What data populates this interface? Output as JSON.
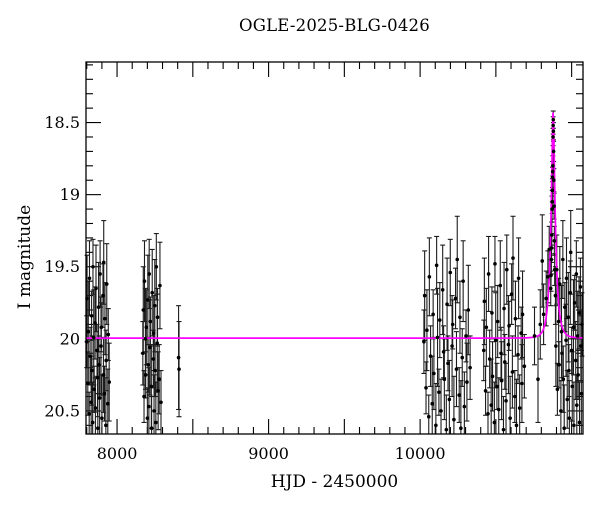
{
  "title": "OGLE-2025-BLG-0426",
  "figure": {
    "background": "#ffffff",
    "frame_color": "#000000"
  },
  "chart_data": {
    "type": "scatter",
    "title": "OGLE-2025-BLG-0426",
    "xlabel": "HJD - 2450000",
    "ylabel": "I magnitude",
    "xlim": [
      7795,
      11075
    ],
    "ylim": [
      20.66,
      18.08
    ],
    "y_inverted": true,
    "grid": false,
    "legend": null,
    "x_ticks": [
      {
        "v": 8000,
        "label": "8000"
      },
      {
        "v": 9000,
        "label": "9000"
      },
      {
        "v": 10000,
        "label": "10000"
      }
    ],
    "y_ticks": [
      {
        "v": 18.5,
        "label": "18.5"
      },
      {
        "v": 19.0,
        "label": "19"
      },
      {
        "v": 19.5,
        "label": "19.5"
      },
      {
        "v": 20.0,
        "label": "20"
      },
      {
        "v": 20.5,
        "label": "20.5"
      }
    ],
    "x_minor_step": 100,
    "x_medium_step": 500,
    "y_minor_step": 0.1,
    "y_medium_step": 0.5,
    "point_color": "#000000",
    "errorbar_color": "#1c1c1c",
    "model": {
      "type": "paczynski",
      "t0": 10878,
      "tE": 32,
      "u0": 0.24,
      "I0": 19.995,
      "peak_mag": 18.43,
      "color": "#ff00ff"
    },
    "points": [
      [
        7800,
        20.02,
        0.18
      ],
      [
        7802,
        19.72,
        0.3
      ],
      [
        7807,
        20.31,
        0.22
      ],
      [
        7810,
        19.95,
        0.35
      ],
      [
        7816,
        20.52,
        0.15
      ],
      [
        7818,
        19.58,
        0.26
      ],
      [
        7822,
        20.12,
        0.2
      ],
      [
        7829,
        20.44,
        0.32
      ],
      [
        7832,
        19.84,
        0.17
      ],
      [
        7834,
        20.22,
        0.24
      ],
      [
        7839,
        20.58,
        0.28
      ],
      [
        7841,
        19.5,
        0.19
      ],
      [
        7846,
        19.99,
        0.33
      ],
      [
        7849,
        20.35,
        0.16
      ],
      [
        7855,
        19.89,
        0.25
      ],
      [
        7857,
        20.48,
        0.21
      ],
      [
        7861,
        19.65,
        0.3
      ],
      [
        7868,
        20.08,
        0.18
      ],
      [
        7871,
        20.27,
        0.27
      ],
      [
        7873,
        20.62,
        0.24
      ],
      [
        7878,
        19.78,
        0.31
      ],
      [
        7880,
        20.18,
        0.2
      ],
      [
        7885,
        20.41,
        0.28
      ],
      [
        7888,
        19.55,
        0.23
      ],
      [
        7894,
        20.05,
        0.34
      ],
      [
        7896,
        19.92,
        0.17
      ],
      [
        7900,
        20.55,
        0.3
      ],
      [
        7907,
        19.7,
        0.22
      ],
      [
        7910,
        20.25,
        0.26
      ],
      [
        7912,
        19.47,
        0.29
      ],
      [
        7917,
        20.38,
        0.19
      ],
      [
        7920,
        19.86,
        0.25
      ],
      [
        7926,
        20.6,
        0.33
      ],
      [
        7928,
        20.15,
        0.21
      ],
      [
        7932,
        19.62,
        0.28
      ],
      [
        7939,
        20.45,
        0.24
      ],
      [
        7942,
        19.97,
        0.18
      ],
      [
        7948,
        20.3,
        0.27
      ],
      [
        8170,
        20.1,
        0.22
      ],
      [
        8173,
        19.8,
        0.3
      ],
      [
        8178,
        20.4,
        0.18
      ],
      [
        8181,
        19.6,
        0.28
      ],
      [
        8187,
        20.0,
        0.35
      ],
      [
        8189,
        20.25,
        0.16
      ],
      [
        8193,
        19.92,
        0.26
      ],
      [
        8200,
        20.55,
        0.21
      ],
      [
        8203,
        19.73,
        0.31
      ],
      [
        8205,
        20.18,
        0.19
      ],
      [
        8210,
        20.47,
        0.27
      ],
      [
        8212,
        19.55,
        0.24
      ],
      [
        8217,
        20.06,
        0.33
      ],
      [
        8220,
        19.88,
        0.17
      ],
      [
        8226,
        20.33,
        0.29
      ],
      [
        8228,
        20.62,
        0.22
      ],
      [
        8232,
        19.68,
        0.3
      ],
      [
        8239,
        20.14,
        0.2
      ],
      [
        8242,
        19.96,
        0.26
      ],
      [
        8244,
        20.5,
        0.25
      ],
      [
        8249,
        19.77,
        0.32
      ],
      [
        8251,
        20.22,
        0.18
      ],
      [
        8256,
        20.58,
        0.28
      ],
      [
        8259,
        19.5,
        0.23
      ],
      [
        8265,
        20.03,
        0.34
      ],
      [
        8267,
        19.85,
        0.2
      ],
      [
        8271,
        20.36,
        0.27
      ],
      [
        8278,
        20.28,
        0.24
      ],
      [
        8283,
        19.63,
        0.3
      ],
      [
        8290,
        20.44,
        0.22
      ],
      [
        8406,
        20.13,
        0.36
      ],
      [
        8409,
        20.21,
        0.33
      ],
      [
        10025,
        20.02,
        0.22
      ],
      [
        10030,
        19.7,
        0.31
      ],
      [
        10039,
        20.34,
        0.18
      ],
      [
        10045,
        19.94,
        0.28
      ],
      [
        10057,
        20.54,
        0.15
      ],
      [
        10061,
        19.57,
        0.27
      ],
      [
        10069,
        20.12,
        0.21
      ],
      [
        10080,
        20.45,
        0.33
      ],
      [
        10086,
        19.83,
        0.17
      ],
      [
        10091,
        20.24,
        0.25
      ],
      [
        10104,
        20.6,
        0.29
      ],
      [
        10109,
        19.49,
        0.2
      ],
      [
        10115,
        19.99,
        0.34
      ],
      [
        10124,
        20.37,
        0.16
      ],
      [
        10130,
        19.87,
        0.26
      ],
      [
        10138,
        20.5,
        0.22
      ],
      [
        10149,
        19.66,
        0.31
      ],
      [
        10155,
        20.09,
        0.18
      ],
      [
        10160,
        20.28,
        0.28
      ],
      [
        10173,
        20.63,
        0.24
      ],
      [
        10178,
        19.76,
        0.32
      ],
      [
        10184,
        20.17,
        0.19
      ],
      [
        10193,
        20.42,
        0.27
      ],
      [
        10199,
        19.54,
        0.23
      ],
      [
        10211,
        20.05,
        0.35
      ],
      [
        10215,
        19.9,
        0.17
      ],
      [
        10223,
        20.56,
        0.3
      ],
      [
        10234,
        19.72,
        0.21
      ],
      [
        10240,
        20.21,
        0.26
      ],
      [
        10245,
        19.45,
        0.3
      ],
      [
        10258,
        20.39,
        0.19
      ],
      [
        10263,
        19.85,
        0.25
      ],
      [
        10269,
        20.62,
        0.33
      ],
      [
        10278,
        20.13,
        0.2
      ],
      [
        10284,
        19.6,
        0.28
      ],
      [
        10292,
        20.47,
        0.24
      ],
      [
        10303,
        19.98,
        0.18
      ],
      [
        10309,
        20.3,
        0.27
      ],
      [
        10318,
        19.8,
        0.31
      ],
      [
        10330,
        20.2,
        0.22
      ],
      [
        10420,
        20.08,
        0.21
      ],
      [
        10424,
        19.74,
        0.3
      ],
      [
        10432,
        20.36,
        0.17
      ],
      [
        10437,
        19.92,
        0.27
      ],
      [
        10448,
        20.52,
        0.15
      ],
      [
        10452,
        19.55,
        0.26
      ],
      [
        10459,
        20.14,
        0.2
      ],
      [
        10469,
        20.46,
        0.32
      ],
      [
        10474,
        19.82,
        0.18
      ],
      [
        10478,
        20.26,
        0.24
      ],
      [
        10490,
        20.58,
        0.28
      ],
      [
        10494,
        19.48,
        0.19
      ],
      [
        10499,
        20.01,
        0.33
      ],
      [
        10507,
        20.33,
        0.16
      ],
      [
        10512,
        19.88,
        0.25
      ],
      [
        10519,
        20.49,
        0.22
      ],
      [
        10529,
        19.63,
        0.31
      ],
      [
        10534,
        20.1,
        0.18
      ],
      [
        10538,
        20.29,
        0.27
      ],
      [
        10550,
        20.63,
        0.23
      ],
      [
        10554,
        19.79,
        0.32
      ],
      [
        10559,
        20.16,
        0.19
      ],
      [
        10567,
        20.43,
        0.26
      ],
      [
        10572,
        19.52,
        0.24
      ],
      [
        10583,
        20.04,
        0.34
      ],
      [
        10587,
        19.91,
        0.17
      ],
      [
        10594,
        20.55,
        0.29
      ],
      [
        10604,
        19.69,
        0.21
      ],
      [
        10609,
        20.23,
        0.25
      ],
      [
        10613,
        19.44,
        0.29
      ],
      [
        10625,
        20.4,
        0.18
      ],
      [
        10629,
        19.86,
        0.26
      ],
      [
        10636,
        20.6,
        0.32
      ],
      [
        10646,
        20.11,
        0.2
      ],
      [
        10650,
        19.58,
        0.28
      ],
      [
        10657,
        20.48,
        0.23
      ],
      [
        10667,
        19.96,
        0.18
      ],
      [
        10672,
        20.31,
        0.27
      ],
      [
        10676,
        19.83,
        0.3
      ],
      [
        10688,
        20.19,
        0.22
      ],
      [
        10755,
        19.98,
        0.2
      ],
      [
        10778,
        20.28,
        0.3
      ],
      [
        10793,
        19.9,
        0.24
      ],
      [
        10806,
        19.46,
        0.32
      ],
      [
        10815,
        19.83,
        0.21
      ],
      [
        10832,
        19.72,
        0.19
      ],
      [
        10843,
        19.57,
        0.18
      ],
      [
        10852,
        19.38,
        0.16
      ],
      [
        10862,
        19.65,
        0.12
      ],
      [
        10864,
        19.56,
        0.11
      ],
      [
        10866,
        19.45,
        0.1
      ],
      [
        10867.5,
        19.37,
        0.1
      ],
      [
        10869,
        19.28,
        0.09
      ],
      [
        10870.5,
        19.1,
        0.09
      ],
      [
        10872,
        19.05,
        0.08
      ],
      [
        10873,
        18.97,
        0.08
      ],
      [
        10874,
        18.88,
        0.07
      ],
      [
        10875,
        18.84,
        0.07
      ],
      [
        10876,
        18.8,
        0.07
      ],
      [
        10877,
        18.6,
        0.06
      ],
      [
        10878,
        18.52,
        0.06
      ],
      [
        10878.8,
        18.48,
        0.06
      ],
      [
        10879.6,
        18.56,
        0.06
      ],
      [
        10881,
        18.7,
        0.07
      ],
      [
        10882.5,
        18.9,
        0.08
      ],
      [
        10884,
        19.08,
        0.09
      ],
      [
        10886,
        19.32,
        0.1
      ],
      [
        10888,
        19.52,
        0.11
      ],
      [
        10893,
        19.7,
        0.2
      ],
      [
        10896,
        20.05,
        0.28
      ],
      [
        10902,
        19.52,
        0.24
      ],
      [
        10906,
        20.35,
        0.18
      ],
      [
        10914,
        19.88,
        0.3
      ],
      [
        10917,
        20.18,
        0.16
      ],
      [
        10922,
        19.62,
        0.26
      ],
      [
        10929,
        20.5,
        0.21
      ],
      [
        10933,
        19.95,
        0.32
      ],
      [
        10936,
        20.1,
        0.19
      ],
      [
        10942,
        19.45,
        0.27
      ],
      [
        10945,
        20.28,
        0.23
      ],
      [
        10951,
        20.62,
        0.3
      ],
      [
        10955,
        19.78,
        0.17
      ],
      [
        10963,
        20.01,
        0.25
      ],
      [
        10966,
        19.58,
        0.28
      ],
      [
        10971,
        20.42,
        0.2
      ],
      [
        10978,
        19.85,
        0.31
      ],
      [
        10982,
        20.22,
        0.18
      ],
      [
        10985,
        20.55,
        0.26
      ],
      [
        10991,
        19.68,
        0.22
      ],
      [
        10994,
        19.4,
        0.29
      ],
      [
        11000,
        20.08,
        0.16
      ],
      [
        11004,
        20.33,
        0.24
      ],
      [
        11012,
        19.92,
        0.33
      ],
      [
        11015,
        20.6,
        0.3
      ],
      [
        11020,
        19.75,
        0.19
      ],
      [
        11027,
        20.15,
        0.27
      ],
      [
        11031,
        19.55,
        0.23
      ],
      [
        11034,
        20.46,
        0.21
      ],
      [
        11040,
        19.98,
        0.31
      ],
      [
        11043,
        20.25,
        0.17
      ],
      [
        11049,
        19.82,
        0.25
      ],
      [
        11052,
        20.58,
        0.28
      ],
      [
        11058,
        19.64,
        0.2
      ],
      [
        11061,
        20.05,
        0.24
      ],
      [
        11064,
        20.38,
        0.3
      ],
      [
        11068,
        19.9,
        0.22
      ]
    ]
  }
}
